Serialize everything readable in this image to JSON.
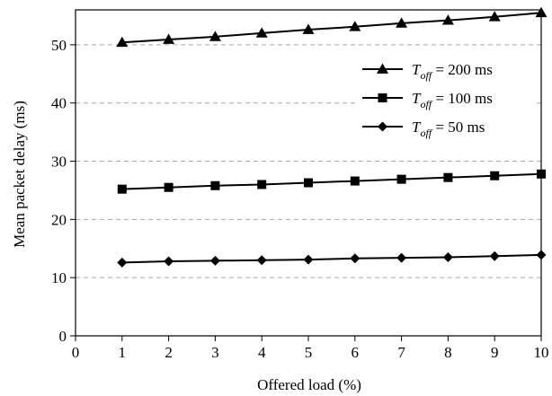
{
  "chart_data": {
    "type": "line",
    "xlabel": "Offered load (%)",
    "ylabel": "Mean packet delay (ms)",
    "xlim": [
      0,
      10
    ],
    "ylim": [
      0,
      56
    ],
    "x_ticks": [
      0,
      1,
      2,
      3,
      4,
      5,
      6,
      7,
      8,
      9,
      10
    ],
    "y_ticks": [
      0,
      10,
      20,
      30,
      40,
      50
    ],
    "grid": "horizontal dashed",
    "legend_placement": "top-right",
    "x": [
      1,
      2,
      3,
      4,
      5,
      6,
      7,
      8,
      9,
      10
    ],
    "series": [
      {
        "legend_T": "T",
        "legend_sub": "off",
        "legend_rest": " = 200 ms",
        "marker": "triangle",
        "values": [
          50.4,
          50.9,
          51.4,
          52.0,
          52.6,
          53.1,
          53.7,
          54.2,
          54.8,
          55.5
        ]
      },
      {
        "legend_T": "T",
        "legend_sub": "off",
        "legend_rest": " = 100 ms",
        "marker": "square",
        "values": [
          25.2,
          25.5,
          25.8,
          26.0,
          26.3,
          26.6,
          26.9,
          27.2,
          27.5,
          27.8
        ]
      },
      {
        "legend_T": "T",
        "legend_sub": "off",
        "legend_rest": " = 50 ms",
        "marker": "diamond",
        "values": [
          12.6,
          12.8,
          12.9,
          13.0,
          13.1,
          13.3,
          13.4,
          13.5,
          13.7,
          13.9
        ]
      }
    ],
    "colors": {
      "line": "#000000",
      "grid": "#a6a6a6"
    }
  }
}
